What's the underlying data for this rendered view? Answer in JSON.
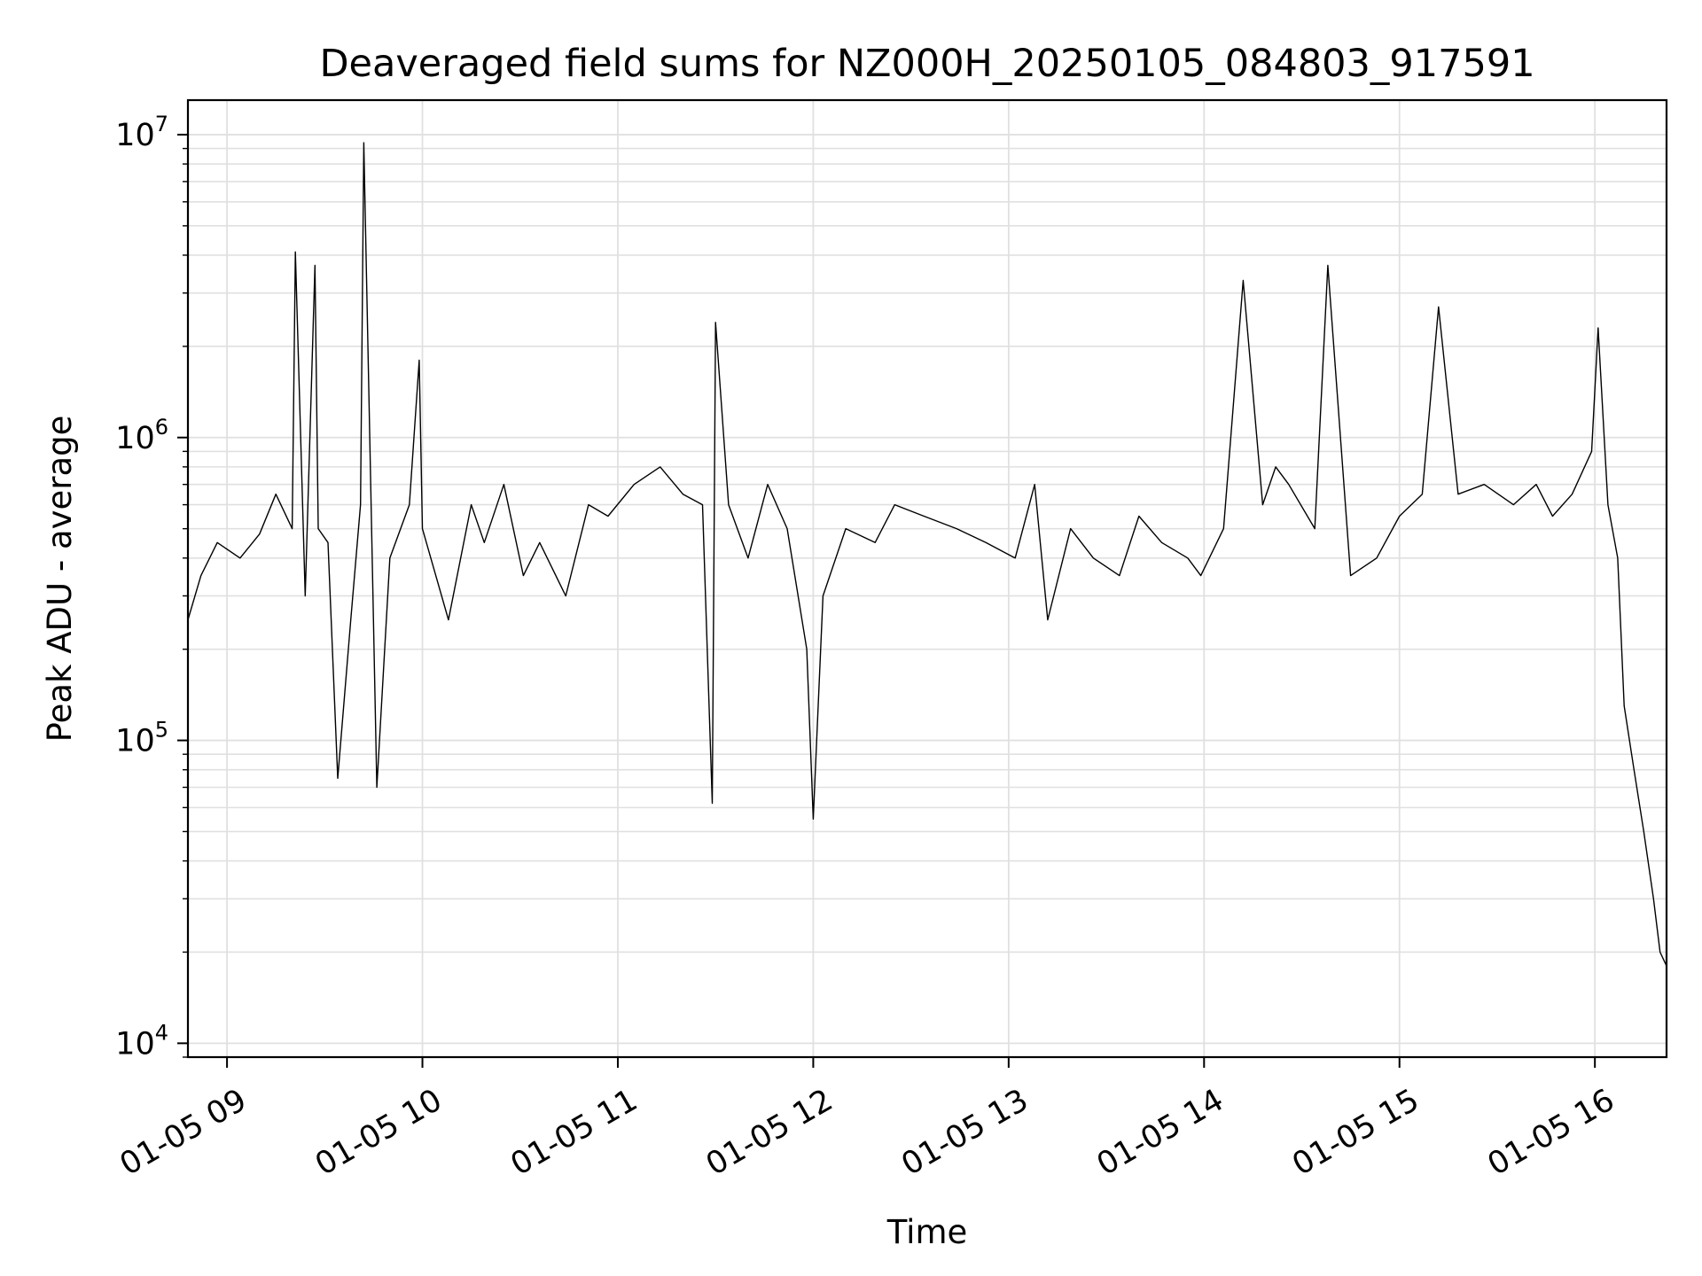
{
  "chart_data": {
    "type": "line",
    "title": "Deaveraged field sums for NZ000H_20250105_084803_917591",
    "xlabel": "Time",
    "ylabel": "Peak ADU - average",
    "yscale": "log",
    "ylim": [
      9000,
      13000000
    ],
    "xlim": [
      "2025-01-05 08:48",
      "2025-01-05 16:22"
    ],
    "grid": true,
    "line_color": "#000000",
    "grid_color": "#e0e0e0",
    "x_ticks": [
      {
        "value": "2025-01-05 09:00",
        "label": "01-05 09"
      },
      {
        "value": "2025-01-05 10:00",
        "label": "01-05 10"
      },
      {
        "value": "2025-01-05 11:00",
        "label": "01-05 11"
      },
      {
        "value": "2025-01-05 12:00",
        "label": "01-05 12"
      },
      {
        "value": "2025-01-05 13:00",
        "label": "01-05 13"
      },
      {
        "value": "2025-01-05 14:00",
        "label": "01-05 14"
      },
      {
        "value": "2025-01-05 15:00",
        "label": "01-05 15"
      },
      {
        "value": "2025-01-05 16:00",
        "label": "01-05 16"
      }
    ],
    "y_ticks": [
      {
        "value": 10000,
        "base": "10",
        "exp": "4"
      },
      {
        "value": 100000,
        "base": "10",
        "exp": "5"
      },
      {
        "value": 1000000,
        "base": "10",
        "exp": "6"
      },
      {
        "value": 10000000,
        "base": "10",
        "exp": "7"
      }
    ],
    "series": [
      {
        "x": [
          "2025-01-05 08:48",
          "2025-01-05 08:52",
          "2025-01-05 08:57",
          "2025-01-05 09:04",
          "2025-01-05 09:10",
          "2025-01-05 09:15",
          "2025-01-05 09:20",
          "2025-01-05 09:21",
          "2025-01-05 09:24",
          "2025-01-05 09:27",
          "2025-01-05 09:28",
          "2025-01-05 09:31",
          "2025-01-05 09:34",
          "2025-01-05 09:38",
          "2025-01-05 09:41",
          "2025-01-05 09:42",
          "2025-01-05 09:46",
          "2025-01-05 09:50",
          "2025-01-05 09:56",
          "2025-01-05 09:59",
          "2025-01-05 10:00",
          "2025-01-05 10:08",
          "2025-01-05 10:15",
          "2025-01-05 10:19",
          "2025-01-05 10:25",
          "2025-01-05 10:31",
          "2025-01-05 10:36",
          "2025-01-05 10:44",
          "2025-01-05 10:51",
          "2025-01-05 10:57",
          "2025-01-05 11:05",
          "2025-01-05 11:13",
          "2025-01-05 11:20",
          "2025-01-05 11:26",
          "2025-01-05 11:29",
          "2025-01-05 11:30",
          "2025-01-05 11:34",
          "2025-01-05 11:40",
          "2025-01-05 11:46",
          "2025-01-05 11:52",
          "2025-01-05 11:58",
          "2025-01-05 12:00",
          "2025-01-05 12:03",
          "2025-01-05 12:10",
          "2025-01-05 12:19",
          "2025-01-05 12:25",
          "2025-01-05 12:34",
          "2025-01-05 12:44",
          "2025-01-05 12:53",
          "2025-01-05 13:02",
          "2025-01-05 13:08",
          "2025-01-05 13:12",
          "2025-01-05 13:19",
          "2025-01-05 13:26",
          "2025-01-05 13:34",
          "2025-01-05 13:40",
          "2025-01-05 13:47",
          "2025-01-05 13:55",
          "2025-01-05 13:59",
          "2025-01-05 14:06",
          "2025-01-05 14:12",
          "2025-01-05 14:18",
          "2025-01-05 14:22",
          "2025-01-05 14:26",
          "2025-01-05 14:34",
          "2025-01-05 14:38",
          "2025-01-05 14:45",
          "2025-01-05 14:53",
          "2025-01-05 15:00",
          "2025-01-05 15:07",
          "2025-01-05 15:12",
          "2025-01-05 15:18",
          "2025-01-05 15:26",
          "2025-01-05 15:35",
          "2025-01-05 15:42",
          "2025-01-05 15:47",
          "2025-01-05 15:53",
          "2025-01-05 15:59",
          "2025-01-05 16:01",
          "2025-01-05 16:04",
          "2025-01-05 16:07",
          "2025-01-05 16:09",
          "2025-01-05 16:12",
          "2025-01-05 16:15",
          "2025-01-05 16:18",
          "2025-01-05 16:20",
          "2025-01-05 16:22"
        ],
        "values": [
          250000,
          350000,
          450000,
          400000,
          480000,
          650000,
          500000,
          4100000,
          300000,
          3700000,
          500000,
          450000,
          75000,
          250000,
          600000,
          9400000,
          70000,
          400000,
          600000,
          1800000,
          500000,
          250000,
          600000,
          450000,
          700000,
          350000,
          450000,
          300000,
          600000,
          550000,
          700000,
          800000,
          650000,
          600000,
          62000,
          2400000,
          600000,
          400000,
          700000,
          500000,
          200000,
          55000,
          300000,
          500000,
          450000,
          600000,
          550000,
          500000,
          450000,
          400000,
          700000,
          250000,
          500000,
          400000,
          350000,
          550000,
          450000,
          400000,
          350000,
          500000,
          3300000,
          600000,
          800000,
          700000,
          500000,
          3700000,
          350000,
          400000,
          550000,
          650000,
          2700000,
          650000,
          700000,
          600000,
          700000,
          550000,
          650000,
          900000,
          2300000,
          600000,
          400000,
          130000,
          80000,
          50000,
          30000,
          20000,
          18000
        ]
      }
    ]
  }
}
